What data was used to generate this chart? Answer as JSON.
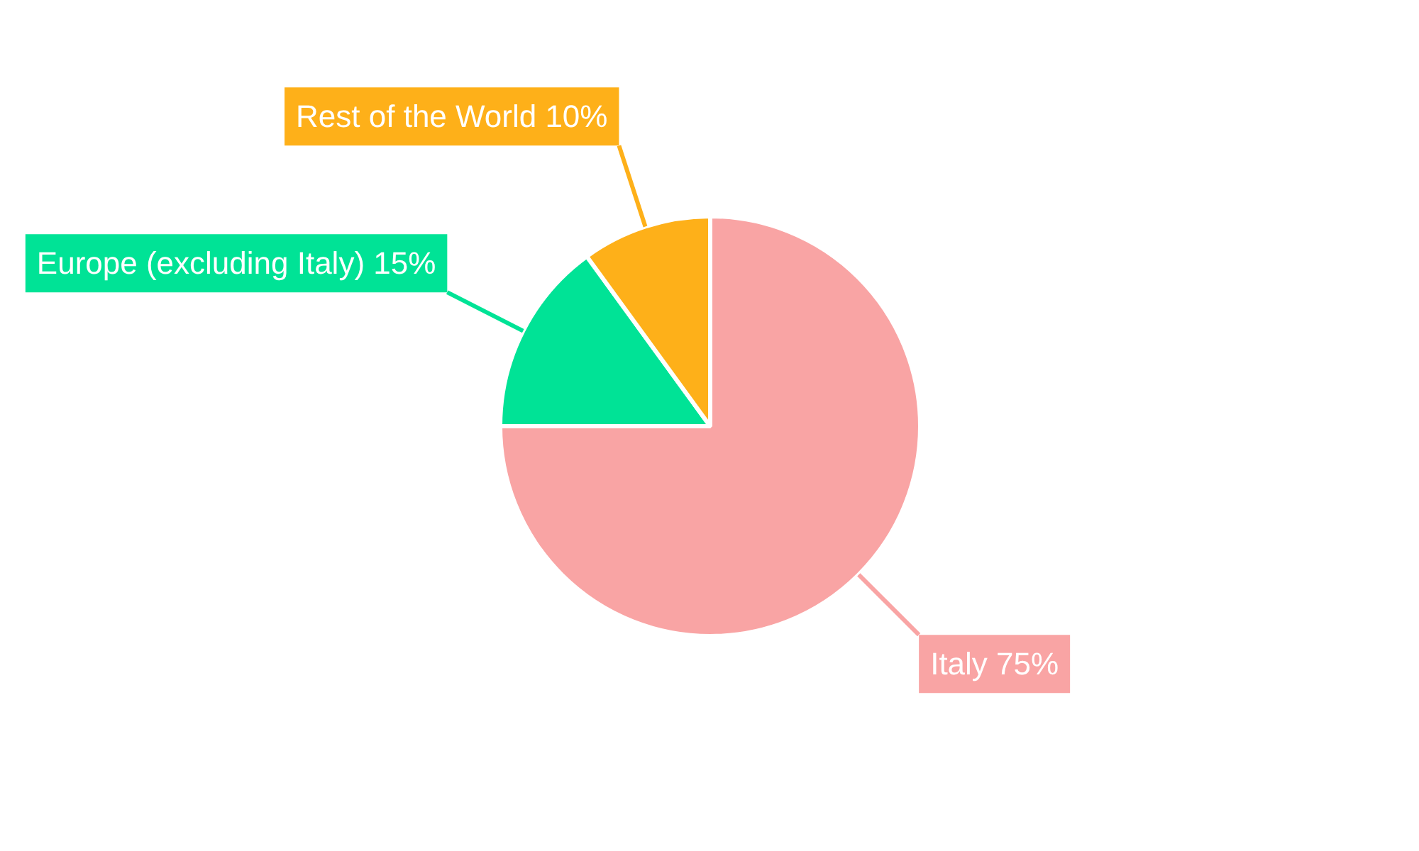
{
  "chart_data": {
    "type": "pie",
    "categories": [
      "Italy",
      "Europe (excluding Italy)",
      "Rest of the World"
    ],
    "values": [
      75,
      15,
      10
    ],
    "colors": [
      "#f9a4a4",
      "#00e396",
      "#feb019"
    ],
    "value_labels": [
      "75%",
      "15%",
      "10%"
    ]
  }
}
